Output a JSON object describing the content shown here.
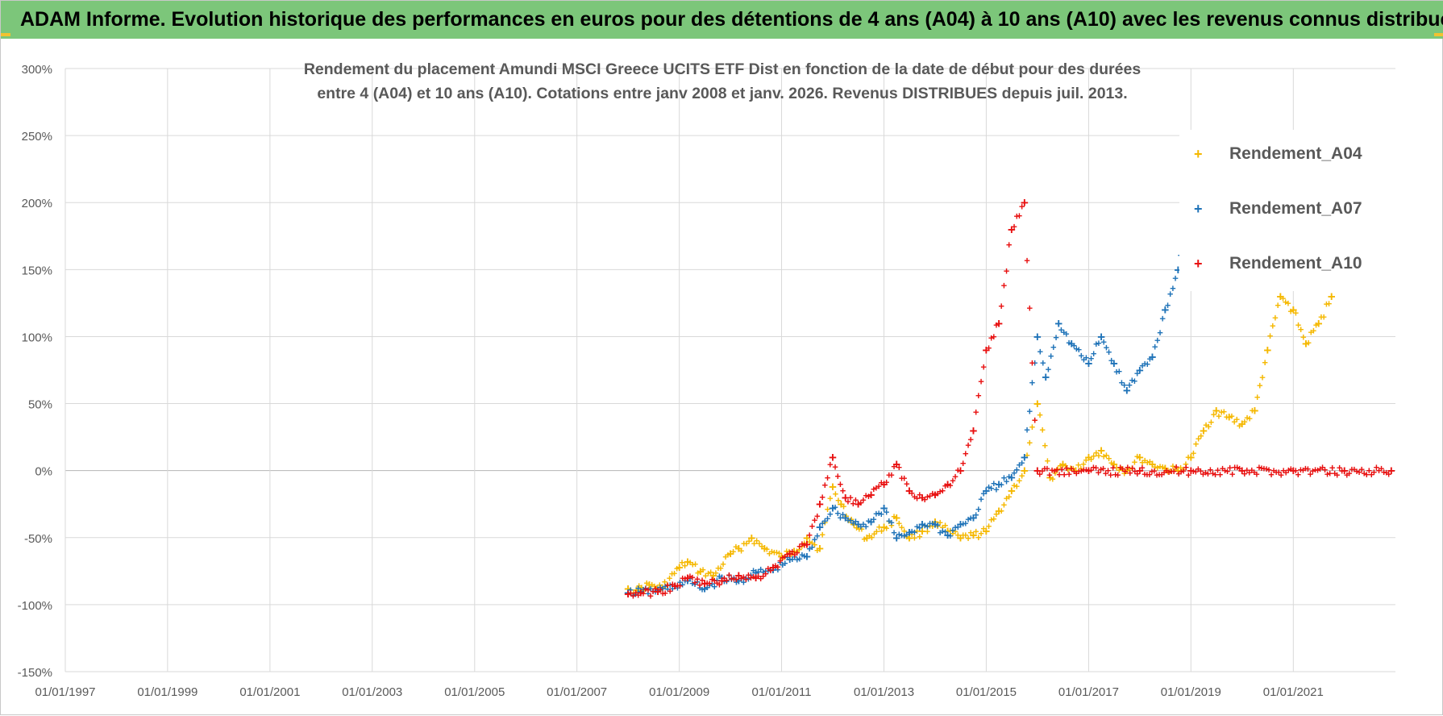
{
  "banner": {
    "title": "ADAM Informe. Evolution historique des performances en euros pour des détentions de 4 ans (A04) à 10 ans (A10) avec les revenus connus distribués",
    "color": "#7cc67a"
  },
  "chart_data": {
    "type": "scatter",
    "title_line1": "Rendement du placement Amundi MSCI Greece UCITS ETF Dist en fonction de la date de début pour des durées",
    "title_line2": "entre 4 (A04) et 10 ans (A10). Cotations entre janv 2008 et janv. 2026. Revenus DISTRIBUES depuis juil. 2013.",
    "xlabel": "",
    "ylabel": "",
    "marker": "+",
    "x_range": [
      "1997-01-01",
      "2022-12-31"
    ],
    "ylim": [
      -150,
      300
    ],
    "y_unit": "%",
    "x_tick_labels": [
      "01/01/1997",
      "01/01/1999",
      "01/01/2001",
      "01/01/2003",
      "01/01/2005",
      "01/01/2007",
      "01/01/2009",
      "01/01/2011",
      "01/01/2013",
      "01/01/2015",
      "01/01/2017",
      "01/01/2019",
      "01/01/2021"
    ],
    "y_ticks": [
      -150,
      -100,
      -50,
      0,
      50,
      100,
      150,
      200,
      250,
      300
    ],
    "y_tick_labels": [
      "-150%",
      "-100%",
      "-50%",
      "0%",
      "50%",
      "100%",
      "150%",
      "200%",
      "250%",
      "300%"
    ],
    "grid": true,
    "legend_position": "top-right",
    "series": [
      {
        "name": "Rendement_A04",
        "color": "#f5b800",
        "points": [
          [
            "2008-01-01",
            -88
          ],
          [
            "2008-03-01",
            -89
          ],
          [
            "2008-06-01",
            -85
          ],
          [
            "2008-09-01",
            -87
          ],
          [
            "2009-01-01",
            -72
          ],
          [
            "2009-03-01",
            -68
          ],
          [
            "2009-06-01",
            -75
          ],
          [
            "2009-09-01",
            -78
          ],
          [
            "2010-01-01",
            -62
          ],
          [
            "2010-03-01",
            -58
          ],
          [
            "2010-06-01",
            -50
          ],
          [
            "2010-09-01",
            -58
          ],
          [
            "2011-01-01",
            -64
          ],
          [
            "2011-04-01",
            -60
          ],
          [
            "2011-07-01",
            -50
          ],
          [
            "2011-10-01",
            -58
          ],
          [
            "2012-01-01",
            -12
          ],
          [
            "2012-03-01",
            -25
          ],
          [
            "2012-06-01",
            -40
          ],
          [
            "2012-09-01",
            -50
          ],
          [
            "2013-01-01",
            -42
          ],
          [
            "2013-04-01",
            -35
          ],
          [
            "2013-07-01",
            -50
          ],
          [
            "2013-10-01",
            -45
          ],
          [
            "2014-01-01",
            -38
          ],
          [
            "2014-04-01",
            -45
          ],
          [
            "2014-07-01",
            -50
          ],
          [
            "2014-10-01",
            -48
          ],
          [
            "2015-01-01",
            -45
          ],
          [
            "2015-04-01",
            -30
          ],
          [
            "2015-07-01",
            -15
          ],
          [
            "2015-10-01",
            0
          ],
          [
            "2016-01-01",
            50
          ],
          [
            "2016-04-01",
            -5
          ],
          [
            "2016-07-01",
            5
          ],
          [
            "2016-10-01",
            0
          ],
          [
            "2017-01-01",
            10
          ],
          [
            "2017-04-01",
            15
          ],
          [
            "2017-07-01",
            5
          ],
          [
            "2017-10-01",
            0
          ],
          [
            "2018-01-01",
            10
          ],
          [
            "2018-04-01",
            5
          ],
          [
            "2018-07-01",
            2
          ],
          [
            "2018-10-01",
            0
          ],
          [
            "2019-01-01",
            10
          ],
          [
            "2019-04-01",
            30
          ],
          [
            "2019-07-01",
            45
          ],
          [
            "2019-10-01",
            40
          ],
          [
            "2020-01-01",
            35
          ],
          [
            "2020-04-01",
            45
          ],
          [
            "2020-07-01",
            90
          ],
          [
            "2020-10-01",
            130
          ],
          [
            "2021-01-01",
            120
          ],
          [
            "2021-04-01",
            95
          ],
          [
            "2021-07-01",
            110
          ],
          [
            "2021-10-01",
            130
          ]
        ]
      },
      {
        "name": "Rendement_A07",
        "color": "#1f73b8",
        "points": [
          [
            "2008-01-01",
            -91
          ],
          [
            "2008-04-01",
            -90
          ],
          [
            "2008-08-01",
            -89
          ],
          [
            "2008-12-01",
            -86
          ],
          [
            "2009-03-01",
            -82
          ],
          [
            "2009-07-01",
            -88
          ],
          [
            "2009-11-01",
            -80
          ],
          [
            "2010-03-01",
            -82
          ],
          [
            "2010-07-01",
            -76
          ],
          [
            "2010-11-01",
            -74
          ],
          [
            "2011-03-01",
            -66
          ],
          [
            "2011-07-01",
            -64
          ],
          [
            "2011-10-01",
            -42
          ],
          [
            "2012-01-01",
            -28
          ],
          [
            "2012-04-01",
            -35
          ],
          [
            "2012-07-01",
            -40
          ],
          [
            "2012-10-01",
            -38
          ],
          [
            "2013-01-01",
            -28
          ],
          [
            "2013-04-01",
            -50
          ],
          [
            "2013-07-01",
            -46
          ],
          [
            "2013-10-01",
            -40
          ],
          [
            "2014-01-01",
            -40
          ],
          [
            "2014-04-01",
            -48
          ],
          [
            "2014-07-01",
            -40
          ],
          [
            "2014-10-01",
            -35
          ],
          [
            "2015-01-01",
            -15
          ],
          [
            "2015-04-01",
            -10
          ],
          [
            "2015-07-01",
            -5
          ],
          [
            "2015-10-01",
            10
          ],
          [
            "2016-01-01",
            100
          ],
          [
            "2016-03-01",
            70
          ],
          [
            "2016-06-01",
            110
          ],
          [
            "2016-09-01",
            95
          ],
          [
            "2017-01-01",
            80
          ],
          [
            "2017-04-01",
            100
          ],
          [
            "2017-07-01",
            80
          ],
          [
            "2017-10-01",
            60
          ],
          [
            "2018-01-01",
            75
          ],
          [
            "2018-04-01",
            85
          ],
          [
            "2018-07-01",
            120
          ],
          [
            "2018-10-01",
            150
          ],
          [
            "2019-01-01",
            200
          ],
          [
            "2019-04-01",
            240
          ]
        ]
      },
      {
        "name": "Rendement_A10",
        "color": "#e81010",
        "points": [
          [
            "2008-01-01",
            -92
          ],
          [
            "2008-04-01",
            -91
          ],
          [
            "2008-08-01",
            -90
          ],
          [
            "2008-12-01",
            -86
          ],
          [
            "2009-03-01",
            -80
          ],
          [
            "2009-07-01",
            -84
          ],
          [
            "2009-11-01",
            -82
          ],
          [
            "2010-03-01",
            -78
          ],
          [
            "2010-07-01",
            -80
          ],
          [
            "2010-11-01",
            -72
          ],
          [
            "2011-03-01",
            -62
          ],
          [
            "2011-07-01",
            -55
          ],
          [
            "2011-10-01",
            -25
          ],
          [
            "2012-01-01",
            10
          ],
          [
            "2012-04-01",
            -20
          ],
          [
            "2012-07-01",
            -25
          ],
          [
            "2012-10-01",
            -18
          ],
          [
            "2013-01-01",
            -10
          ],
          [
            "2013-04-01",
            5
          ],
          [
            "2013-07-01",
            -15
          ],
          [
            "2013-10-01",
            -20
          ],
          [
            "2014-01-01",
            -18
          ],
          [
            "2014-04-01",
            -10
          ],
          [
            "2014-07-01",
            0
          ],
          [
            "2014-10-01",
            30
          ],
          [
            "2015-01-01",
            90
          ],
          [
            "2015-04-01",
            110
          ],
          [
            "2015-07-01",
            180
          ],
          [
            "2015-10-01",
            200
          ],
          [
            "2016-01-01",
            0
          ],
          [
            "2017-01-01",
            0
          ],
          [
            "2018-01-01",
            0
          ],
          [
            "2019-01-01",
            0
          ],
          [
            "2020-01-01",
            0
          ],
          [
            "2021-01-01",
            0
          ],
          [
            "2022-01-01",
            0
          ],
          [
            "2022-12-01",
            0
          ]
        ]
      }
    ]
  }
}
